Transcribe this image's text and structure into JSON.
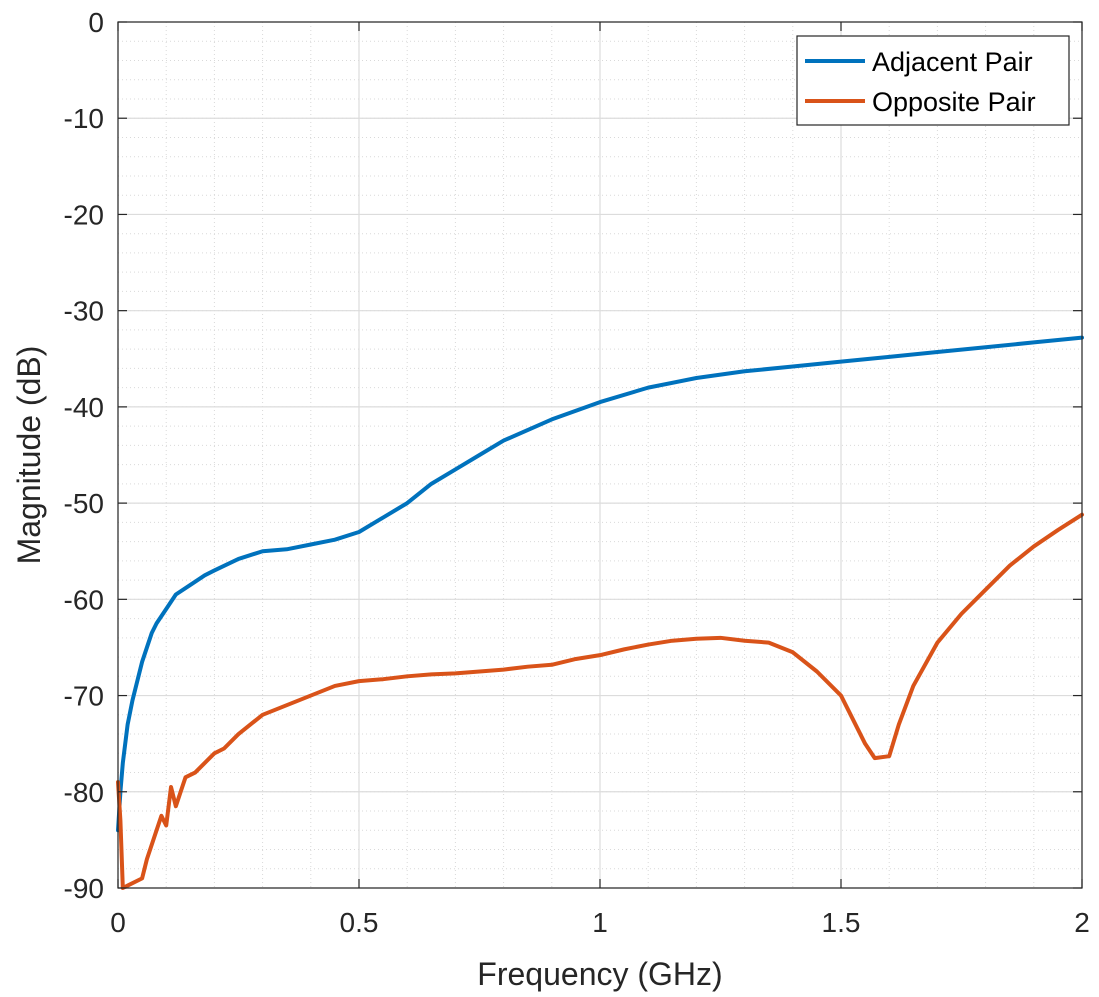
{
  "chart_data": {
    "type": "line",
    "title": "",
    "xlabel": "Frequency (GHz)",
    "ylabel": "Magnitude (dB)",
    "xlim": [
      0,
      2
    ],
    "ylim": [
      -90,
      0
    ],
    "xticks": [
      0,
      0.5,
      1,
      1.5,
      2
    ],
    "xtick_labels": [
      "0",
      "0.5",
      "1",
      "1.5",
      "2"
    ],
    "yticks": [
      0,
      -10,
      -20,
      -30,
      -40,
      -50,
      -60,
      -70,
      -80,
      -90
    ],
    "ytick_labels": [
      "0",
      "-10",
      "-20",
      "-30",
      "-40",
      "-50",
      "-60",
      "-70",
      "-80",
      "-90"
    ],
    "grid": true,
    "minor_grid": true,
    "legend_position": "top-right",
    "series": [
      {
        "name": "Adjacent Pair",
        "color": "#0072BD",
        "x": [
          0,
          0.005,
          0.01,
          0.02,
          0.03,
          0.04,
          0.05,
          0.06,
          0.07,
          0.08,
          0.1,
          0.12,
          0.15,
          0.18,
          0.2,
          0.25,
          0.3,
          0.35,
          0.4,
          0.45,
          0.5,
          0.55,
          0.6,
          0.65,
          0.7,
          0.75,
          0.8,
          0.9,
          1.0,
          1.1,
          1.2,
          1.3,
          1.4,
          1.5,
          1.6,
          1.7,
          1.8,
          1.9,
          2.0
        ],
        "y": [
          -84,
          -80,
          -77,
          -73,
          -70.5,
          -68.5,
          -66.5,
          -65,
          -63.5,
          -62.5,
          -61,
          -59.5,
          -58.5,
          -57.5,
          -57,
          -55.8,
          -55,
          -54.8,
          -54.3,
          -53.8,
          -53,
          -51.5,
          -50,
          -48,
          -46.5,
          -45,
          -43.5,
          -41.3,
          -39.5,
          -38,
          -37,
          -36.3,
          -35.8,
          -35.3,
          -34.8,
          -34.3,
          -33.8,
          -33.3,
          -32.8
        ]
      },
      {
        "name": "Opposite Pair",
        "color": "#D95319",
        "x": [
          0,
          0.005,
          0.01,
          0.05,
          0.06,
          0.08,
          0.09,
          0.1,
          0.11,
          0.12,
          0.13,
          0.14,
          0.16,
          0.18,
          0.2,
          0.22,
          0.25,
          0.3,
          0.35,
          0.4,
          0.45,
          0.5,
          0.55,
          0.6,
          0.65,
          0.7,
          0.75,
          0.8,
          0.85,
          0.9,
          0.95,
          1.0,
          1.05,
          1.1,
          1.15,
          1.2,
          1.25,
          1.3,
          1.35,
          1.4,
          1.45,
          1.5,
          1.53,
          1.55,
          1.57,
          1.6,
          1.62,
          1.65,
          1.7,
          1.75,
          1.8,
          1.85,
          1.9,
          1.95,
          2.0
        ],
        "y": [
          -79,
          -83,
          -90,
          -89,
          -87,
          -84,
          -82.5,
          -83.5,
          -79.5,
          -81.5,
          -80,
          -78.5,
          -78,
          -77,
          -76,
          -75.5,
          -74,
          -72,
          -71,
          -70,
          -69,
          -68.5,
          -68.3,
          -68,
          -67.8,
          -67.7,
          -67.5,
          -67.3,
          -67,
          -66.8,
          -66.2,
          -65.8,
          -65.2,
          -64.7,
          -64.3,
          -64.1,
          -64.0,
          -64.3,
          -64.5,
          -65.5,
          -67.5,
          -70,
          -73,
          -75,
          -76.5,
          -76.3,
          -73,
          -69,
          -64.5,
          -61.5,
          -59,
          -56.5,
          -54.5,
          -52.8,
          -51.2
        ]
      }
    ]
  }
}
